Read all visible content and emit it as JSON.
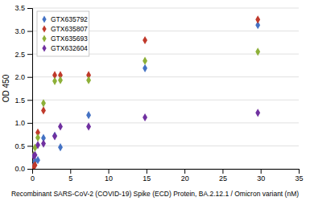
{
  "chart_data": {
    "type": "scatter",
    "title": "",
    "xlabel": "Recombinant SARS-CoV-2 (COVID-19) Spike (ECD) Protein, BA.2.12.1 / Omicron variant (nM)",
    "ylabel": "OD 450",
    "xlim": [
      0,
      35
    ],
    "ylim": [
      0,
      3.5
    ],
    "xticks": [
      0,
      5,
      10,
      15,
      20,
      25,
      30,
      35
    ],
    "yticks": [
      {
        "value": 0,
        "label": "0.0"
      },
      0.5,
      {
        "value": 1.0,
        "label": "1.0"
      },
      1.5,
      {
        "value": 2.0,
        "label": "2.0"
      },
      2.5,
      {
        "value": 3.0,
        "label": "3.0"
      },
      3.5
    ],
    "grid": true,
    "legend": "upper left",
    "marker": "diamond",
    "series": [
      {
        "name": "GTX635792",
        "color": "#4472C4",
        "x": [
          0.19,
          0.37,
          0.74,
          1.48,
          2.96,
          3.7,
          7.41,
          14.81,
          29.63
        ],
        "values": [
          0.07,
          0.17,
          0.19,
          0.67,
          0.72,
          0.47,
          1.17,
          2.19,
          3.13
        ]
      },
      {
        "name": "GTX635807",
        "color": "#C0392B",
        "x": [
          0.19,
          0.37,
          0.74,
          1.48,
          2.96,
          3.7,
          7.41,
          14.81,
          29.63
        ],
        "values": [
          0.05,
          0.08,
          0.79,
          1.27,
          2.04,
          2.04,
          2.04,
          2.8,
          3.25
        ]
      },
      {
        "name": "GTX635693",
        "color": "#8DB038",
        "x": [
          0.19,
          0.37,
          0.74,
          1.48,
          2.96,
          3.7,
          7.41,
          14.81,
          29.63
        ],
        "values": [
          0.3,
          0.46,
          0.68,
          1.43,
          1.91,
          1.93,
          1.93,
          2.35,
          2.55
        ]
      },
      {
        "name": "GTX632604",
        "color": "#7030A0",
        "x": [
          0.19,
          0.37,
          0.74,
          1.48,
          2.96,
          3.7,
          7.41,
          14.81,
          29.63
        ],
        "values": [
          0.28,
          0.3,
          0.52,
          0.55,
          0.71,
          0.92,
          0.92,
          1.12,
          1.22
        ]
      }
    ]
  }
}
